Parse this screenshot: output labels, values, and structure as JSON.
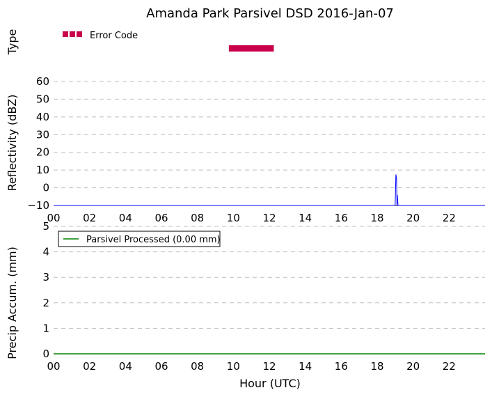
{
  "chart_data": {
    "title": "Amanda Park Parsivel DSD 2016-Jan-07",
    "panels": [
      {
        "id": "type",
        "type": "bar",
        "ylabel": "Type",
        "xlim": [
          0,
          24
        ],
        "legend": {
          "placement": "top-left",
          "entries": [
            {
              "name": "Error Code",
              "color": "#c8004b"
            }
          ]
        },
        "series": [
          {
            "name": "Error Code",
            "color": "#c8004b",
            "segments": [
              {
                "x_start": 9.75,
                "x_end": 12.25
              }
            ]
          }
        ]
      },
      {
        "id": "reflectivity",
        "type": "line",
        "ylabel": "Reflectivity (dBZ)",
        "xlim": [
          0,
          24
        ],
        "ylim": [
          -10,
          60
        ],
        "yticks": [
          "60",
          "50",
          "40",
          "30",
          "20",
          "10",
          "0",
          "−10"
        ],
        "grid": true,
        "series": [
          {
            "color": "#0000ff",
            "x": [
              0,
              19.0,
              19.04,
              19.08,
              19.1,
              19.12,
              19.14,
              19.16,
              19.2,
              24
            ],
            "y": [
              -10,
              -10,
              7.5,
              5,
              -10,
              -4,
              -7,
              -10,
              -10,
              -10
            ]
          }
        ]
      },
      {
        "id": "precip",
        "type": "line",
        "ylabel": "Precip Accum. (mm)",
        "xlabel": "Hour (UTC)",
        "xlim": [
          0,
          24
        ],
        "ylim": [
          0,
          5
        ],
        "yticks": [
          "5",
          "4",
          "3",
          "2",
          "1",
          "0"
        ],
        "grid": true,
        "legend": {
          "placement": "top-left",
          "entries": [
            {
              "name": "Parsivel Processed (0.00 mm)",
              "color": "#008000"
            }
          ]
        },
        "series": [
          {
            "name": "Parsivel Processed (0.00 mm)",
            "color": "#008000",
            "x": [
              0,
              24
            ],
            "y": [
              0,
              0
            ]
          }
        ]
      }
    ],
    "xticks": [
      "00",
      "02",
      "04",
      "06",
      "08",
      "10",
      "12",
      "14",
      "16",
      "18",
      "20",
      "22"
    ]
  }
}
